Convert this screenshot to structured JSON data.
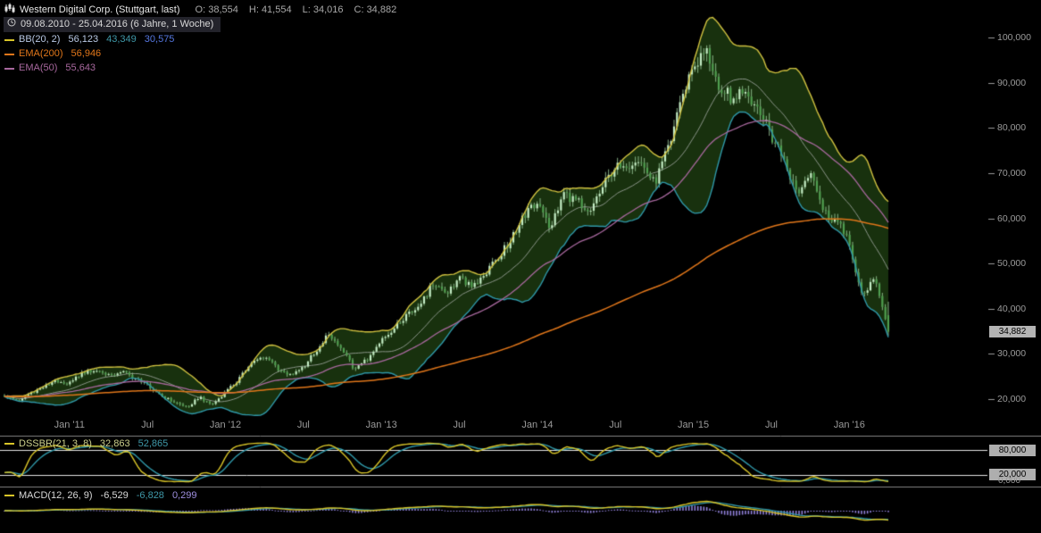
{
  "header": {
    "title": "Western Digital Corp. (Stuttgart, last)",
    "ohlc": {
      "o_label": "O:",
      "o": "38,554",
      "h_label": "H:",
      "h": "41,554",
      "l_label": "L:",
      "l": "34,016",
      "c_label": "C:",
      "c": "34,882"
    },
    "date_range": "09.08.2010 - 25.04.2016 (6 Jahre, 1 Woche)"
  },
  "legend": {
    "bb": {
      "name": "BB(20, 2)",
      "upper": "56,123",
      "middle": "43,349",
      "lower": "30,575"
    },
    "ema200": {
      "name": "EMA(200)",
      "value": "56,946"
    },
    "ema50": {
      "name": "EMA(50)",
      "value": "55,643"
    }
  },
  "last_price_label": "34,882",
  "panels": {
    "dssbr": {
      "name": "DSSBR(21, 3, 8)",
      "value1": "32,863",
      "value2": "52,865",
      "badge_80": "80,000",
      "badge_20": "20,000",
      "zero_label": "0,000"
    },
    "macd": {
      "name": "MACD(12, 26, 9)",
      "value1": "-6,529",
      "value2": "-6,828",
      "value3": "0,299"
    }
  },
  "colors": {
    "background": "#000000",
    "bb_fill": "#18310e",
    "bb_upper": "#cfc040",
    "bb_middle": "#8a9488",
    "bb_lower": "#2f97a8",
    "ema200": "#e0761a",
    "ema50": "#a8689e",
    "candle_up": "#c4ecc4",
    "candle_down": "#4f9e4f",
    "wick": "#a5d6a5",
    "axis_text": "#9a9a9a",
    "separator": "#848484",
    "level_line": "#e6e6e6",
    "badge_bg": "#aeaeae",
    "stoch_fast": "#d8c428",
    "stoch_slow": "#2f97a8",
    "macd_line": "#d8c428",
    "macd_signal": "#2f97a8",
    "macd_hist": "#8f7fd8",
    "bb_label": "#b8c8e4",
    "bb_mid_label": "#3f98a8",
    "bb_low_label": "#5577e0",
    "dssbr_label": "#ccd08c"
  },
  "chart_data": {
    "type": "candlestick",
    "title": "Western Digital Corp. (Stuttgart, last)",
    "timeframe": "weekly",
    "period_label": "6 Jahre, 1 Woche",
    "x_range": [
      "09.08.2010",
      "25.04.2016"
    ],
    "ylim": [
      15,
      105
    ],
    "y_ticks": [
      100,
      90,
      80,
      70,
      60,
      50,
      40,
      30,
      20
    ],
    "y_tick_labels": [
      "100,000",
      "90,000",
      "80,000",
      "70,000",
      "60,000",
      "50,000",
      "40,000",
      "30,000",
      "20,000"
    ],
    "x_ticks": [
      {
        "label": "Jan '11",
        "month": 5
      },
      {
        "label": "Jul",
        "month": 11
      },
      {
        "label": "Jan '12",
        "month": 17
      },
      {
        "label": "Jul",
        "month": 23
      },
      {
        "label": "Jan '13",
        "month": 29
      },
      {
        "label": "Jul",
        "month": 35
      },
      {
        "label": "Jan '14",
        "month": 41
      },
      {
        "label": "Jul",
        "month": 47
      },
      {
        "label": "Jan '15",
        "month": 53
      },
      {
        "label": "Jul",
        "month": 59
      },
      {
        "label": "Jan '16",
        "month": 65
      }
    ],
    "monthly_close": [
      20.8,
      19.6,
      21.4,
      22.6,
      24.2,
      23.4,
      25.8,
      26.4,
      25.2,
      26.2,
      24.6,
      23.2,
      20.8,
      19.4,
      18.2,
      20.4,
      18.8,
      21.6,
      24.4,
      27.8,
      29.6,
      26.8,
      25.4,
      27.2,
      30.8,
      34.6,
      30.6,
      26.4,
      29.2,
      33.2,
      35.8,
      38.4,
      40.6,
      45.8,
      43.6,
      46.8,
      45.2,
      47.8,
      51.6,
      55.4,
      60.8,
      63.2,
      57.8,
      65.6,
      63.8,
      61.8,
      66.8,
      71.6,
      69.8,
      72.4,
      67.6,
      74.8,
      86.0,
      93.5,
      97.0,
      89.5,
      86.5,
      89.0,
      83.5,
      78.5,
      72.5,
      65.5,
      69.5,
      61.5,
      59.5,
      54.5,
      42.5,
      47.0,
      34.882
    ],
    "ohlc_last": {
      "open": 38.554,
      "high": 41.554,
      "low": 34.016,
      "close": 34.882
    },
    "indicators": {
      "bollinger": {
        "period": 20,
        "mult": 2,
        "last_upper": 56.123,
        "last_middle": 43.349,
        "last_lower": 30.575
      },
      "ema200": {
        "period": 200,
        "last": 56.946
      },
      "ema50": {
        "period": 50,
        "last": 55.643
      }
    },
    "sub_panels": [
      {
        "type": "oscillator",
        "name": "DSSBR(21, 3, 8)",
        "last_values": [
          32.863,
          52.865
        ],
        "levels": [
          80,
          20,
          0
        ]
      },
      {
        "type": "macd",
        "name": "MACD(12, 26, 9)",
        "last_macd": -6.529,
        "last_signal": -6.828,
        "last_hist": 0.299
      }
    ]
  }
}
